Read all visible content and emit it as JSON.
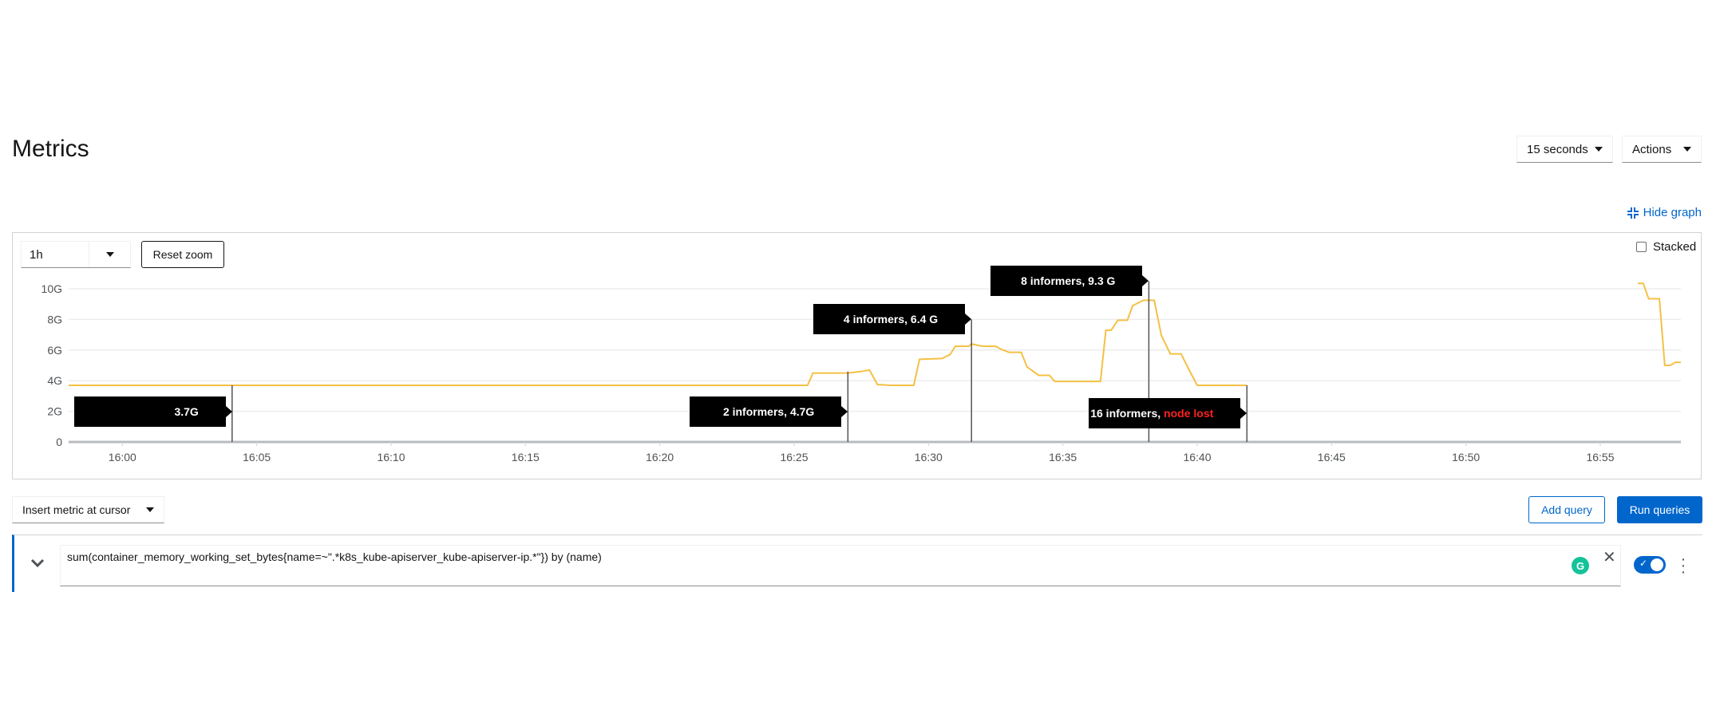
{
  "header": {
    "title": "Metrics",
    "refresh_interval": "15 seconds",
    "actions_label": "Actions",
    "hide_graph_label": "Hide graph"
  },
  "graph_controls": {
    "time_range": "1h",
    "reset_zoom_label": "Reset zoom",
    "stacked_label": "Stacked",
    "stacked_checked": false
  },
  "chart_data": {
    "type": "line",
    "xlim": [
      "15:58:00",
      "16:58:00"
    ],
    "ylim": [
      0,
      10.8
    ],
    "x_ticks": [
      "16:00",
      "16:05",
      "16:10",
      "16:15",
      "16:20",
      "16:25",
      "16:30",
      "16:35",
      "16:40",
      "16:45",
      "16:50",
      "16:55"
    ],
    "y_ticks": [
      {
        "value": 0,
        "label": "0"
      },
      {
        "value": 2,
        "label": "2G"
      },
      {
        "value": 4,
        "label": "4G"
      },
      {
        "value": 6,
        "label": "6G"
      },
      {
        "value": 8,
        "label": "8G"
      },
      {
        "value": 10,
        "label": "10G"
      }
    ],
    "grid": true,
    "color": "#f4c145",
    "series": [
      {
        "segments": [
          [
            [
              "15:58:00",
              3.7
            ],
            [
              "16:25:30",
              3.7
            ],
            [
              "16:25:42",
              4.5
            ],
            [
              "16:27:00",
              4.5
            ],
            [
              "16:27:30",
              4.6
            ],
            [
              "16:27:48",
              4.7
            ],
            [
              "16:28:06",
              3.75
            ],
            [
              "16:28:36",
              3.7
            ],
            [
              "16:29:27",
              3.7
            ],
            [
              "16:29:40",
              5.4
            ],
            [
              "16:30:30",
              5.45
            ],
            [
              "16:30:48",
              5.7
            ],
            [
              "16:31:00",
              6.25
            ],
            [
              "16:31:30",
              6.25
            ],
            [
              "16:31:36",
              6.4
            ],
            [
              "16:32:00",
              6.25
            ],
            [
              "16:32:30",
              6.25
            ],
            [
              "16:32:42",
              6.05
            ],
            [
              "16:33:00",
              5.85
            ],
            [
              "16:33:27",
              5.85
            ],
            [
              "16:33:40",
              4.9
            ],
            [
              "16:34:06",
              4.35
            ],
            [
              "16:34:30",
              4.35
            ],
            [
              "16:34:42",
              3.95
            ],
            [
              "16:36:24",
              3.95
            ],
            [
              "16:36:36",
              7.3
            ],
            [
              "16:36:48",
              7.3
            ],
            [
              "16:37:03",
              7.95
            ],
            [
              "16:37:24",
              7.95
            ],
            [
              "16:37:36",
              8.9
            ],
            [
              "16:38:00",
              9.25
            ],
            [
              "16:38:24",
              9.25
            ],
            [
              "16:38:40",
              6.95
            ],
            [
              "16:39:00",
              5.75
            ],
            [
              "16:39:24",
              5.75
            ],
            [
              "16:39:42",
              4.7
            ],
            [
              "16:40:00",
              3.7
            ],
            [
              "16:41:51",
              3.7
            ]
          ],
          [
            [
              "16:56:24",
              10.35
            ],
            [
              "16:56:36",
              10.35
            ],
            [
              "16:56:48",
              9.35
            ],
            [
              "16:57:12",
              9.35
            ],
            [
              "16:57:24",
              5.0
            ],
            [
              "16:57:36",
              5.0
            ],
            [
              "16:57:48",
              5.2
            ],
            [
              "16:58:00",
              5.2
            ]
          ]
        ]
      }
    ],
    "annotations": [
      {
        "text": "3.7G",
        "highlight": "",
        "time": "16:04:05",
        "points_to": 3.7,
        "label_level": 2.0
      },
      {
        "text": "2 informers, 4.7G",
        "highlight": "",
        "time": "16:27:00",
        "points_to": 4.6,
        "label_level": 2.0
      },
      {
        "text": "4 informers, 6.4 G",
        "highlight": "",
        "time": "16:31:36",
        "points_to": 8.0,
        "label_level": 8.0
      },
      {
        "text": "8 informers, 9.3 G",
        "highlight": "",
        "time": "16:38:12",
        "points_to": 10.5,
        "label_level": 10.5
      },
      {
        "text": "16 informers, ",
        "highlight": "node lost",
        "time": "16:41:51",
        "points_to": 3.7,
        "label_level": 1.9
      }
    ]
  },
  "query_toolbar": {
    "insert_metric_label": "Insert metric at cursor",
    "add_query_label": "Add query",
    "run_queries_label": "Run queries"
  },
  "query": {
    "expression": "sum(container_memory_working_set_bytes{name=~\".*k8s_kube-apiserver_kube-apiserver-ip.*\"}) by (name)",
    "enabled": true
  },
  "colors": {
    "accent": "#0066cc",
    "series": "#f4c145",
    "highlight": "#ff2020"
  }
}
